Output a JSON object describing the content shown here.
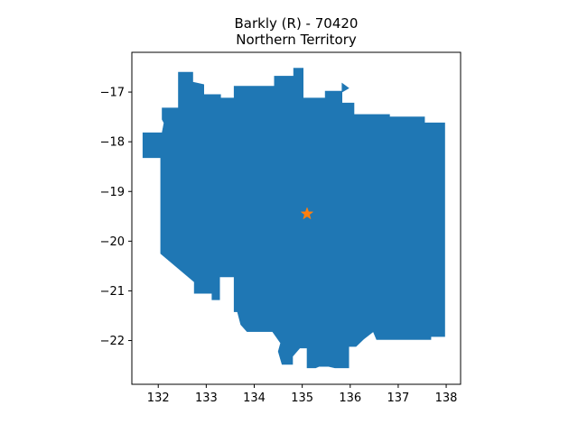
{
  "chart_data": {
    "type": "map",
    "title_line1": "Barkly (R) - 70420",
    "title_line2": "Northern Territory",
    "xlim": [
      131.45,
      138.3
    ],
    "ylim": [
      -22.88,
      -16.2
    ],
    "x_ticks": [
      132,
      133,
      134,
      135,
      136,
      137,
      138
    ],
    "x_tick_labels": [
      "132",
      "133",
      "134",
      "135",
      "136",
      "137",
      "138"
    ],
    "y_ticks": [
      -17,
      -18,
      -19,
      -20,
      -21,
      -22
    ],
    "y_tick_labels": [
      "−17",
      "−18",
      "−19",
      "−20",
      "−21",
      "−22"
    ],
    "region_color": "#1f77b4",
    "marker_color": "#ff7f0e",
    "centroid": [
      135.1,
      -19.45
    ],
    "region_outline": [
      [
        132.42,
        -16.6
      ],
      [
        132.72,
        -16.6
      ],
      [
        132.72,
        -16.8
      ],
      [
        132.95,
        -16.85
      ],
      [
        132.95,
        -17.05
      ],
      [
        133.3,
        -17.05
      ],
      [
        133.3,
        -17.12
      ],
      [
        133.58,
        -17.12
      ],
      [
        133.58,
        -16.88
      ],
      [
        134.42,
        -16.88
      ],
      [
        134.42,
        -16.68
      ],
      [
        134.82,
        -16.68
      ],
      [
        134.82,
        -16.52
      ],
      [
        135.02,
        -16.52
      ],
      [
        135.02,
        -17.12
      ],
      [
        135.48,
        -17.12
      ],
      [
        135.48,
        -16.98
      ],
      [
        135.83,
        -16.98
      ],
      [
        135.83,
        -16.82
      ],
      [
        135.97,
        -16.92
      ],
      [
        135.83,
        -17.0
      ],
      [
        135.83,
        -17.22
      ],
      [
        136.08,
        -17.22
      ],
      [
        136.08,
        -17.45
      ],
      [
        136.82,
        -17.45
      ],
      [
        136.82,
        -17.5
      ],
      [
        137.55,
        -17.5
      ],
      [
        137.55,
        -17.62
      ],
      [
        137.97,
        -17.62
      ],
      [
        137.97,
        -21.92
      ],
      [
        137.68,
        -21.92
      ],
      [
        137.68,
        -21.98
      ],
      [
        136.55,
        -21.98
      ],
      [
        136.48,
        -21.82
      ],
      [
        136.28,
        -21.97
      ],
      [
        136.12,
        -22.12
      ],
      [
        135.97,
        -22.12
      ],
      [
        135.97,
        -22.55
      ],
      [
        135.68,
        -22.55
      ],
      [
        135.55,
        -22.52
      ],
      [
        135.35,
        -22.52
      ],
      [
        135.28,
        -22.55
      ],
      [
        135.1,
        -22.55
      ],
      [
        135.1,
        -22.15
      ],
      [
        134.95,
        -22.15
      ],
      [
        134.8,
        -22.32
      ],
      [
        134.8,
        -22.48
      ],
      [
        134.58,
        -22.48
      ],
      [
        134.5,
        -22.22
      ],
      [
        134.55,
        -22.05
      ],
      [
        134.38,
        -21.82
      ],
      [
        133.85,
        -21.82
      ],
      [
        133.72,
        -21.68
      ],
      [
        133.65,
        -21.42
      ],
      [
        133.58,
        -21.42
      ],
      [
        133.58,
        -20.72
      ],
      [
        133.28,
        -20.72
      ],
      [
        133.28,
        -21.18
      ],
      [
        133.12,
        -21.18
      ],
      [
        133.12,
        -21.05
      ],
      [
        132.75,
        -21.05
      ],
      [
        132.75,
        -20.82
      ],
      [
        132.05,
        -20.25
      ],
      [
        132.05,
        -18.32
      ],
      [
        131.68,
        -18.32
      ],
      [
        131.68,
        -17.82
      ],
      [
        132.08,
        -17.82
      ],
      [
        132.12,
        -17.62
      ],
      [
        132.08,
        -17.55
      ],
      [
        132.08,
        -17.32
      ],
      [
        132.42,
        -17.32
      ]
    ]
  }
}
